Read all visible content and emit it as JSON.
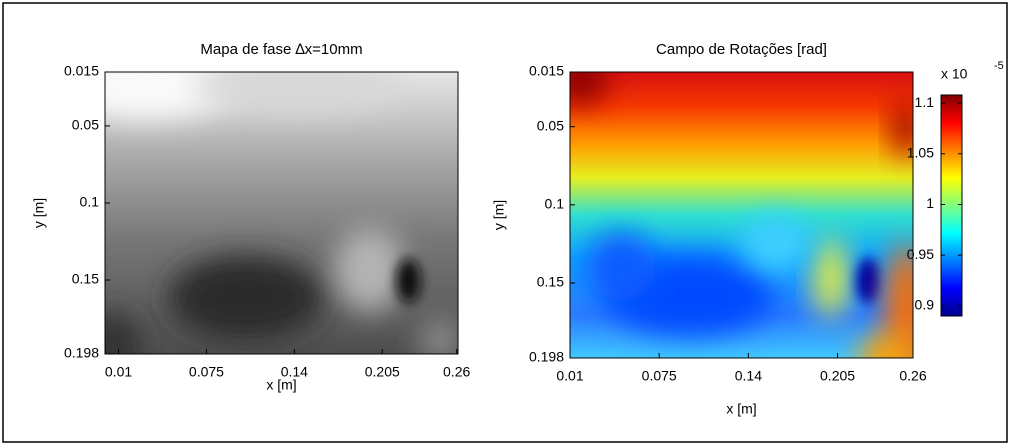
{
  "chart_data": [
    {
      "type": "heatmap",
      "title": "Mapa de fase ∆x=10mm",
      "x_label": "x [m]",
      "y_label": "y [m]",
      "colormap": "gray",
      "xlim": [
        0,
        0.261
      ],
      "xticks": [
        0.01,
        0.075,
        0.14,
        0.205,
        0.26
      ],
      "ylim": [
        0.015,
        0.198
      ],
      "yticks": [
        0.015,
        0.05,
        0.1,
        0.15,
        0.198
      ],
      "y_reversed": true
    },
    {
      "type": "heatmap",
      "title": "Campo de Rotações [rad]",
      "x_label": "x [m]",
      "y_label": "y [m]",
      "colormap": "jet",
      "xlim": [
        0.01,
        0.26
      ],
      "xticks": [
        0.01,
        0.075,
        0.14,
        0.205,
        0.26
      ],
      "ylim": [
        0.015,
        0.198
      ],
      "yticks": [
        0.015,
        0.05,
        0.1,
        0.15,
        0.198
      ],
      "y_reversed": true,
      "colorbar": {
        "lim": [
          0.89,
          1.108
        ],
        "ticks": [
          0.9,
          0.95,
          1,
          1.05,
          1.1
        ],
        "multiplier_label": "x 10",
        "multiplier_exponent": "-5"
      }
    }
  ]
}
